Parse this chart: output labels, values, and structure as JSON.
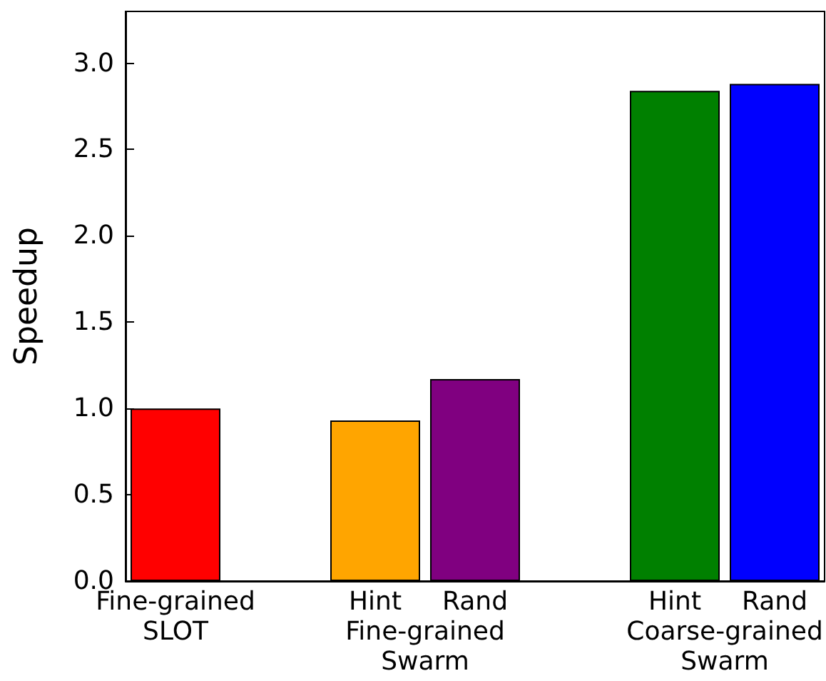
{
  "chart_data": {
    "type": "bar",
    "ylabel": "Speedup",
    "categories": [
      "Fine-grained\nSLOT",
      null,
      "Hint",
      "Rand",
      null,
      "Hint",
      "Rand"
    ],
    "values": [
      1.0,
      null,
      0.93,
      1.17,
      null,
      2.84,
      2.88
    ],
    "colors": [
      "#ff0000",
      "#000000",
      "#ffa500",
      "#800080",
      "#000000",
      "#008000",
      "#0000ff"
    ],
    "ylim": [
      0,
      3.3
    ],
    "yticks": [
      {
        "value": 0,
        "label": "0.0"
      },
      {
        "value": 0.5,
        "label": "0.5"
      },
      {
        "value": 1,
        "label": "1.0"
      },
      {
        "value": 1.5,
        "label": "1.5"
      },
      {
        "value": 2,
        "label": "2.0"
      },
      {
        "value": 2.5,
        "label": "2.5"
      },
      {
        "value": 3,
        "label": "3.0"
      }
    ],
    "annotations": [
      "Fine-grained\nSwarm",
      "Coarse-grained\nSwarm"
    ],
    "grid": false
  }
}
